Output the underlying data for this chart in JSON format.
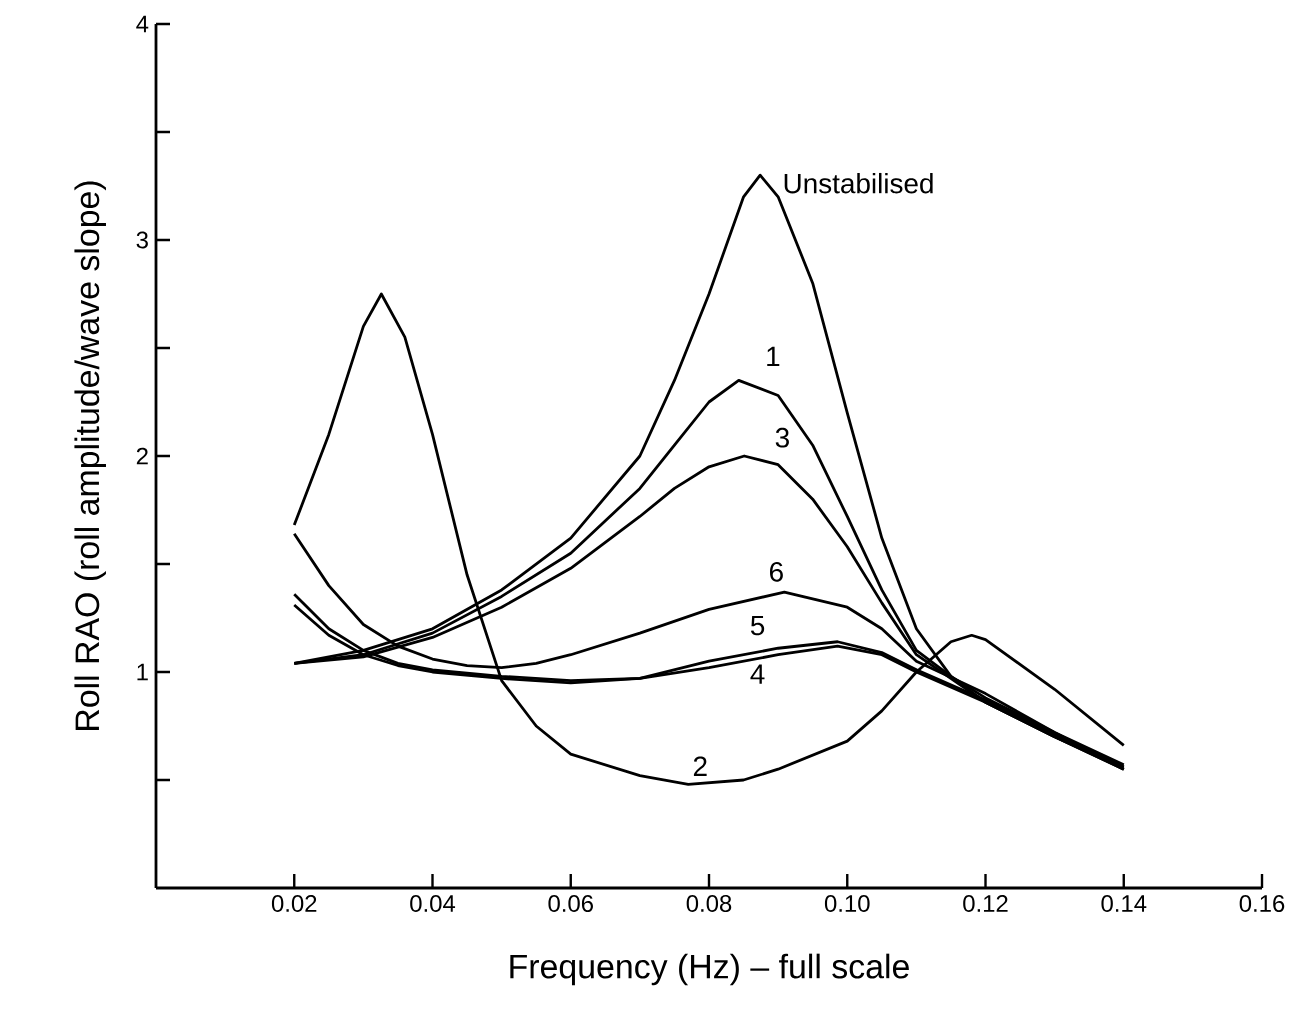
{
  "chart_data": {
    "type": "line",
    "xlabel": "Frequency (Hz)  –  full scale",
    "ylabel": "Roll RAO  (roll amplitude/wave slope)",
    "xlim": [
      0,
      0.16
    ],
    "xticks": [
      {
        "value": 0.02,
        "label": "0.02"
      },
      {
        "value": 0.04,
        "label": "0.04"
      },
      {
        "value": 0.06,
        "label": "0.06"
      },
      {
        "value": 0.08,
        "label": "0.08"
      },
      {
        "value": 0.1,
        "label": "0.10"
      },
      {
        "value": 0.12,
        "label": "0.12"
      },
      {
        "value": 0.14,
        "label": "0.14"
      },
      {
        "value": 0.16,
        "label": "0.16"
      }
    ],
    "ylim": [
      0,
      4
    ],
    "yticks": [
      {
        "value": 0.5,
        "label": null
      },
      1,
      {
        "value": 1.5,
        "label": null
      },
      2,
      {
        "value": 2.5,
        "label": null
      },
      3,
      {
        "value": 3.5,
        "label": null
      },
      4
    ],
    "grid": false,
    "legend": false,
    "marker": "none",
    "line_style": "solid",
    "series": [
      {
        "name": "Unstabilised",
        "color": "#000000",
        "x": [
          0.02,
          0.03,
          0.04,
          0.05,
          0.06,
          0.07,
          0.075,
          0.08,
          0.085,
          0.0874,
          0.09,
          0.095,
          0.1,
          0.105,
          0.11,
          0.115,
          0.12,
          0.13,
          0.14
        ],
        "values": [
          1.04,
          1.1,
          1.2,
          1.38,
          1.62,
          2.0,
          2.35,
          2.75,
          3.2,
          3.3,
          3.2,
          2.8,
          2.2,
          1.62,
          1.2,
          0.98,
          0.88,
          0.72,
          0.57
        ]
      },
      {
        "name": "1",
        "color": "#000000",
        "x": [
          0.02,
          0.03,
          0.04,
          0.05,
          0.06,
          0.07,
          0.075,
          0.08,
          0.0843,
          0.09,
          0.095,
          0.1,
          0.105,
          0.11,
          0.12,
          0.13,
          0.14
        ],
        "values": [
          1.04,
          1.08,
          1.18,
          1.35,
          1.55,
          1.85,
          2.05,
          2.25,
          2.35,
          2.28,
          2.05,
          1.72,
          1.38,
          1.1,
          0.86,
          0.7,
          0.56
        ]
      },
      {
        "name": "2",
        "color": "#000000",
        "x": [
          0.02,
          0.025,
          0.03,
          0.0326,
          0.036,
          0.04,
          0.045,
          0.05,
          0.055,
          0.06,
          0.07,
          0.077,
          0.085,
          0.09,
          0.1,
          0.105,
          0.11,
          0.115,
          0.118,
          0.12,
          0.13,
          0.14
        ],
        "values": [
          1.68,
          2.1,
          2.6,
          2.75,
          2.55,
          2.1,
          1.45,
          0.96,
          0.75,
          0.62,
          0.52,
          0.48,
          0.5,
          0.55,
          0.68,
          0.82,
          1.0,
          1.14,
          1.17,
          1.15,
          0.92,
          0.66
        ]
      },
      {
        "name": "3",
        "color": "#000000",
        "x": [
          0.02,
          0.03,
          0.04,
          0.05,
          0.06,
          0.07,
          0.075,
          0.08,
          0.0851,
          0.09,
          0.095,
          0.1,
          0.105,
          0.11,
          0.12,
          0.13,
          0.14
        ],
        "values": [
          1.04,
          1.07,
          1.16,
          1.3,
          1.48,
          1.72,
          1.85,
          1.95,
          2.0,
          1.96,
          1.8,
          1.58,
          1.32,
          1.08,
          0.86,
          0.7,
          0.55
        ]
      },
      {
        "name": "4",
        "color": "#000000",
        "x": [
          0.02,
          0.025,
          0.03,
          0.035,
          0.04,
          0.05,
          0.06,
          0.07,
          0.08,
          0.09,
          0.0986,
          0.105,
          0.11,
          0.12,
          0.13,
          0.14
        ],
        "values": [
          1.36,
          1.2,
          1.1,
          1.04,
          1.01,
          0.98,
          0.96,
          0.97,
          1.02,
          1.08,
          1.12,
          1.08,
          1.0,
          0.86,
          0.7,
          0.55
        ]
      },
      {
        "name": "5",
        "color": "#000000",
        "x": [
          0.02,
          0.025,
          0.03,
          0.035,
          0.04,
          0.05,
          0.06,
          0.07,
          0.08,
          0.09,
          0.0986,
          0.105,
          0.11,
          0.12,
          0.13,
          0.14
        ],
        "values": [
          1.31,
          1.17,
          1.08,
          1.03,
          1.0,
          0.97,
          0.95,
          0.97,
          1.05,
          1.11,
          1.14,
          1.09,
          1.01,
          0.87,
          0.71,
          0.56
        ]
      },
      {
        "name": "6",
        "color": "#000000",
        "x": [
          0.02,
          0.025,
          0.03,
          0.035,
          0.04,
          0.045,
          0.05,
          0.055,
          0.06,
          0.07,
          0.08,
          0.0909,
          0.1,
          0.105,
          0.11,
          0.12,
          0.13,
          0.14
        ],
        "values": [
          1.64,
          1.4,
          1.22,
          1.12,
          1.06,
          1.03,
          1.02,
          1.04,
          1.08,
          1.18,
          1.29,
          1.37,
          1.3,
          1.2,
          1.05,
          0.9,
          0.72,
          0.55
        ]
      }
    ]
  }
}
